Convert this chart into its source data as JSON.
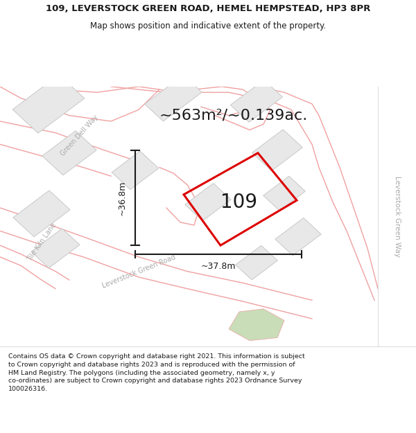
{
  "title_line1": "109, LEVERSTOCK GREEN ROAD, HEMEL HEMPSTEAD, HP3 8PR",
  "title_line2": "Map shows position and indicative extent of the property.",
  "area_text": "~563m²/~0.139ac.",
  "label_109": "109",
  "dim_vertical": "~36.8m",
  "dim_horizontal": "~37.8m",
  "footer_text": "Contains OS data © Crown copyright and database right 2021. This information is subject to Crown copyright and database rights 2023 and is reproduced with the permission of HM Land Registry. The polygons (including the associated geometry, namely x, y co-ordinates) are subject to Crown copyright and database rights 2023 Ordnance Survey 100026316.",
  "map_bg": "#ffffff",
  "block_fill": "#e8e8e8",
  "block_edge": "#c8c8c8",
  "road_line_color": "#f0a0a0",
  "red_line_color": "#dd0000",
  "black_color": "#1a1a1a",
  "white_color": "#ffffff",
  "right_strip_bg": "#f0ece8",
  "right_strip_line": "#cccccc",
  "right_label": "Leverstock Green Way",
  "right_label_color": "#aaaaaa",
  "green_fill": "#c8ddb8",
  "title_fontsize": 9.5,
  "subtitle_fontsize": 8.5,
  "area_fontsize": 16,
  "label_fontsize": 20,
  "dim_fontsize": 9,
  "road_label_fontsize": 7,
  "footer_fontsize": 6.8
}
